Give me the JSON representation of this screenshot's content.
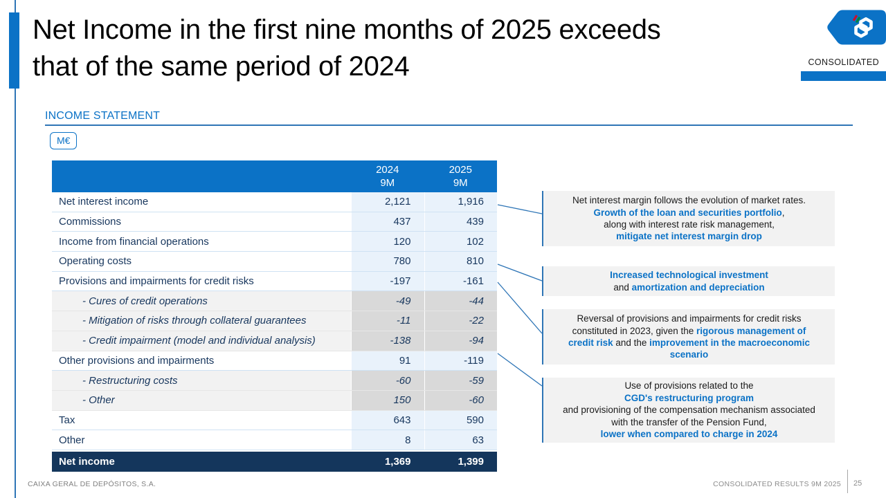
{
  "title": {
    "line1": "Net Income in the first nine months of 2025 exceeds",
    "line2": "that of the same period of 2024"
  },
  "header": {
    "consolidated_label": "CONSOLIDATED",
    "logo_icon": "cgd-emblem"
  },
  "section": {
    "title": "INCOME STATEMENT",
    "unit_badge": "M€"
  },
  "table": {
    "columns": [
      {
        "year": "2024",
        "period": "9M"
      },
      {
        "year": "2025",
        "period": "9M"
      }
    ],
    "rows": [
      {
        "label": "Net interest income",
        "v2024": "2,121",
        "v2025": "1,916",
        "style": "normal"
      },
      {
        "label": "Commissions",
        "v2024": "437",
        "v2025": "439",
        "style": "normal"
      },
      {
        "label": "Income from financial operations",
        "v2024": "120",
        "v2025": "102",
        "style": "normal"
      },
      {
        "label": "Operating costs",
        "v2024": "780",
        "v2025": "810",
        "style": "normal"
      },
      {
        "label": "Provisions and impairments for credit risks",
        "v2024": "-197",
        "v2025": "-161",
        "style": "normal"
      },
      {
        "label": "- Cures of credit operations",
        "v2024": "-49",
        "v2025": "-44",
        "style": "sub"
      },
      {
        "label": "- Mitigation of risks through collateral guarantees",
        "v2024": "-11",
        "v2025": "-22",
        "style": "sub"
      },
      {
        "label": "- Credit impairment (model and individual analysis)",
        "v2024": "-138",
        "v2025": "-94",
        "style": "sub"
      },
      {
        "label": "Other provisions and impairments",
        "v2024": "91",
        "v2025": "-119",
        "style": "normal"
      },
      {
        "label": "- Restructuring costs",
        "v2024": "-60",
        "v2025": "-59",
        "style": "sub"
      },
      {
        "label": "- Other",
        "v2024": "150",
        "v2025": "-60",
        "style": "sub"
      },
      {
        "label": "Tax",
        "v2024": "643",
        "v2025": "590",
        "style": "normal"
      },
      {
        "label": "Other",
        "v2024": "8",
        "v2025": "63",
        "style": "normal"
      },
      {
        "label": "Net income",
        "v2024": "1,369",
        "v2025": "1,399",
        "style": "total"
      }
    ]
  },
  "annotations": [
    {
      "lines": [
        [
          {
            "t": "Net interest margin follows the evolution of market rates.",
            "em": false
          }
        ],
        [
          {
            "t": "Growth of the loan and securities portfolio",
            "em": true
          },
          {
            "t": ",",
            "em": false
          }
        ],
        [
          {
            "t": "along with interest rate risk management,",
            "em": false
          }
        ],
        [
          {
            "t": "mitigate net interest margin drop",
            "em": true
          }
        ]
      ]
    },
    {
      "lines": [
        [
          {
            "t": "Increased technological investment",
            "em": true
          }
        ],
        [
          {
            "t": "and ",
            "em": false
          },
          {
            "t": "amortization and depreciation",
            "em": true
          }
        ]
      ]
    },
    {
      "lines": [
        [
          {
            "t": "Reversal of provisions and impairments for credit risks",
            "em": false
          }
        ],
        [
          {
            "t": "constituted in 2023, given the ",
            "em": false
          },
          {
            "t": "rigorous management of",
            "em": true
          }
        ],
        [
          {
            "t": "credit risk",
            "em": true
          },
          {
            "t": " and the ",
            "em": false
          },
          {
            "t": "improvement in the macroeconomic",
            "em": true
          }
        ],
        [
          {
            "t": "scenario",
            "em": true
          }
        ]
      ]
    },
    {
      "lines": [
        [
          {
            "t": "Use of provisions related to the",
            "em": false
          }
        ],
        [
          {
            "t": "CGD's restructuring program",
            "em": true
          }
        ],
        [
          {
            "t": "and provisioning of the compensation mechanism associated",
            "em": false
          }
        ],
        [
          {
            "t": "with the transfer of the Pension Fund,",
            "em": false
          }
        ],
        [
          {
            "t": "lower when compared to charge in 2024",
            "em": true
          }
        ]
      ]
    }
  ],
  "footer": {
    "left": "CAIXA GERAL DE DEPÓSITOS, S.A.",
    "right": "CONSOLIDATED RESULTS 9M 2025",
    "page": "25"
  },
  "colors": {
    "brand_blue": "#0b72c6",
    "accent_line_blue": "#2e75b6",
    "navy_text": "#17365d",
    "total_row_navy": "#14365c",
    "value_cell_blue": "#e9f2fb",
    "sub_label_gray": "#f2f2f2",
    "sub_value_gray": "#d9d9d9",
    "note_bg_gray": "#f2f2f2",
    "logo_red": "#c8102e",
    "logo_green": "#00843d"
  }
}
